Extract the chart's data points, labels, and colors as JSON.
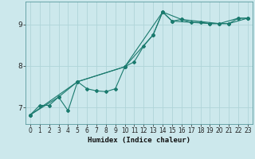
{
  "title": "",
  "xlabel": "Humidex (Indice chaleur)",
  "ylabel": "",
  "bg_color": "#cce8ec",
  "grid_color": "#b0d4d8",
  "line_color": "#1a7a6e",
  "xlim": [
    -0.5,
    23.5
  ],
  "ylim": [
    6.6,
    9.55
  ],
  "yticks": [
    7,
    8,
    9
  ],
  "xticks": [
    0,
    1,
    2,
    3,
    4,
    5,
    6,
    7,
    8,
    9,
    10,
    11,
    12,
    13,
    14,
    15,
    16,
    17,
    18,
    19,
    20,
    21,
    22,
    23
  ],
  "series1": [
    [
      0,
      6.82
    ],
    [
      1,
      7.05
    ],
    [
      2,
      7.05
    ],
    [
      3,
      7.25
    ],
    [
      4,
      6.92
    ],
    [
      5,
      7.62
    ],
    [
      6,
      7.45
    ],
    [
      7,
      7.4
    ],
    [
      8,
      7.38
    ],
    [
      9,
      7.45
    ],
    [
      10,
      7.98
    ],
    [
      11,
      8.1
    ],
    [
      12,
      8.48
    ],
    [
      13,
      8.75
    ],
    [
      14,
      9.3
    ],
    [
      15,
      9.08
    ],
    [
      16,
      9.12
    ],
    [
      17,
      9.05
    ],
    [
      18,
      9.05
    ],
    [
      19,
      9.02
    ],
    [
      20,
      9.02
    ],
    [
      21,
      9.02
    ],
    [
      22,
      9.15
    ],
    [
      23,
      9.15
    ]
  ],
  "series2": [
    [
      0,
      6.82
    ],
    [
      3,
      7.25
    ],
    [
      5,
      7.62
    ],
    [
      10,
      7.98
    ],
    [
      13,
      8.75
    ],
    [
      14,
      9.3
    ],
    [
      16,
      9.12
    ],
    [
      20,
      9.02
    ],
    [
      22,
      9.15
    ],
    [
      23,
      9.15
    ]
  ],
  "series3": [
    [
      0,
      6.82
    ],
    [
      5,
      7.62
    ],
    [
      10,
      7.98
    ],
    [
      14,
      9.3
    ],
    [
      15,
      9.08
    ],
    [
      19,
      9.02
    ],
    [
      21,
      9.02
    ],
    [
      23,
      9.15
    ]
  ]
}
